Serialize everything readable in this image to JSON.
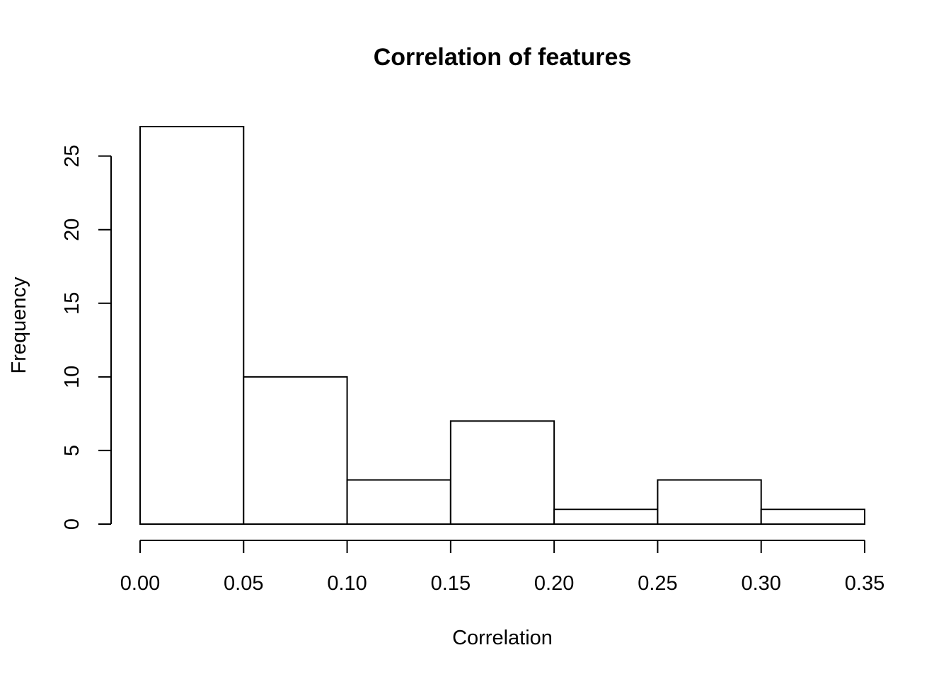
{
  "chart_data": {
    "type": "bar",
    "title": "Correlation of features",
    "xlabel": "Correlation",
    "ylabel": "Frequency",
    "bins": [
      {
        "start": 0.0,
        "end": 0.05,
        "count": 27
      },
      {
        "start": 0.05,
        "end": 0.1,
        "count": 10
      },
      {
        "start": 0.1,
        "end": 0.15,
        "count": 3
      },
      {
        "start": 0.15,
        "end": 0.2,
        "count": 7
      },
      {
        "start": 0.2,
        "end": 0.25,
        "count": 1
      },
      {
        "start": 0.25,
        "end": 0.3,
        "count": 3
      },
      {
        "start": 0.3,
        "end": 0.35,
        "count": 1
      }
    ],
    "xlim": [
      0.0,
      0.35
    ],
    "ylim": [
      0,
      27
    ],
    "x_ticks": [
      "0.00",
      "0.05",
      "0.10",
      "0.15",
      "0.20",
      "0.25",
      "0.30",
      "0.35"
    ],
    "y_ticks": [
      "0",
      "5",
      "10",
      "15",
      "20",
      "25"
    ],
    "grid": false,
    "legend": "none",
    "colors": {
      "bar_fill": "#ffffff",
      "bar_stroke": "#000000"
    }
  }
}
